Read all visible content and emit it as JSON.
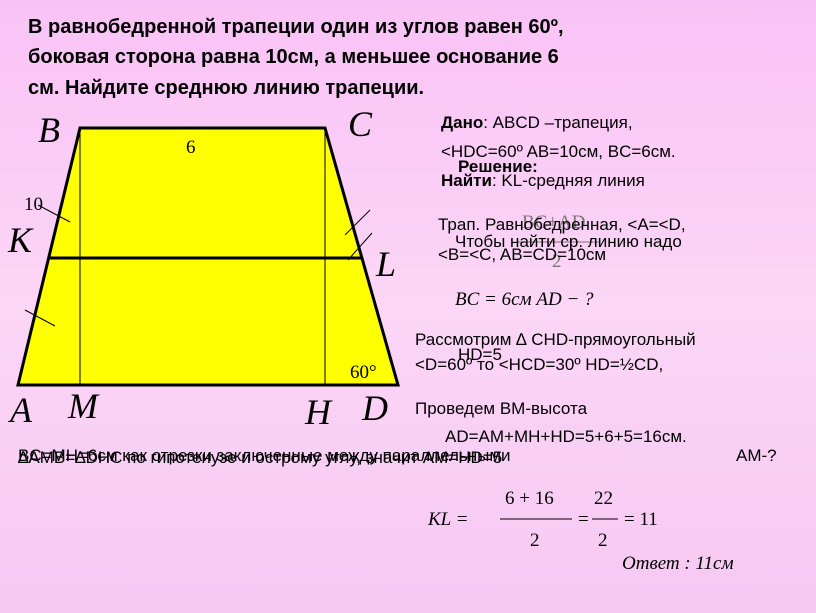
{
  "title": [
    "В равнобедренной трапеции один из углов равен 60º,",
    "боковая сторона равна 10см, а меньшее основание 6",
    "см. Найдите среднюю линию трапеции."
  ],
  "figure": {
    "B": "B",
    "C": "C",
    "K": "K",
    "L": "L",
    "A": "A",
    "M": "M",
    "H": "H",
    "D": "D",
    "top": "6",
    "side": "10",
    "angle": "60°"
  },
  "given": {
    "label": "Дано",
    "text": ": ABCD –трапеция,",
    "line2": "<HDC=60º AB=10см, BC=6см."
  },
  "find": {
    "label": "Найти",
    "text": ": KL-средняя линия"
  },
  "solution": {
    "heading": "Решение:",
    "lines": [
      "Трап. Равнобедренная, <A=<D,",
      "Чтобы найти ср. линию надо",
      "<B=<C, AB=CD=10см",
      "Рассмотрим ∆ CHD-прямоугольный",
      "HD=5",
      "<D=60º то <HCD=30º HD=½CD,",
      "Проведем BM-высота",
      "AD=AM+MH+HD=5+6+5=16см.",
      "BC=MH=6см как отрезки заключенные между параллельными",
      "∆AMB=∆DHC по гипотенузе и острому углу, значит AM=HD=5",
      "AM-?"
    ],
    "midline_formula": {
      "numerator": "BC+AD",
      "denominator": "2"
    },
    "known": "BC = 6см  AD − ?",
    "formula": {
      "lhs": "KL =",
      "num1": "6 + 16",
      "den1": "2",
      "eq": "=",
      "num2": "22",
      "den2": "2",
      "rhs": "= 11"
    },
    "answer": "Ответ : 11см"
  }
}
